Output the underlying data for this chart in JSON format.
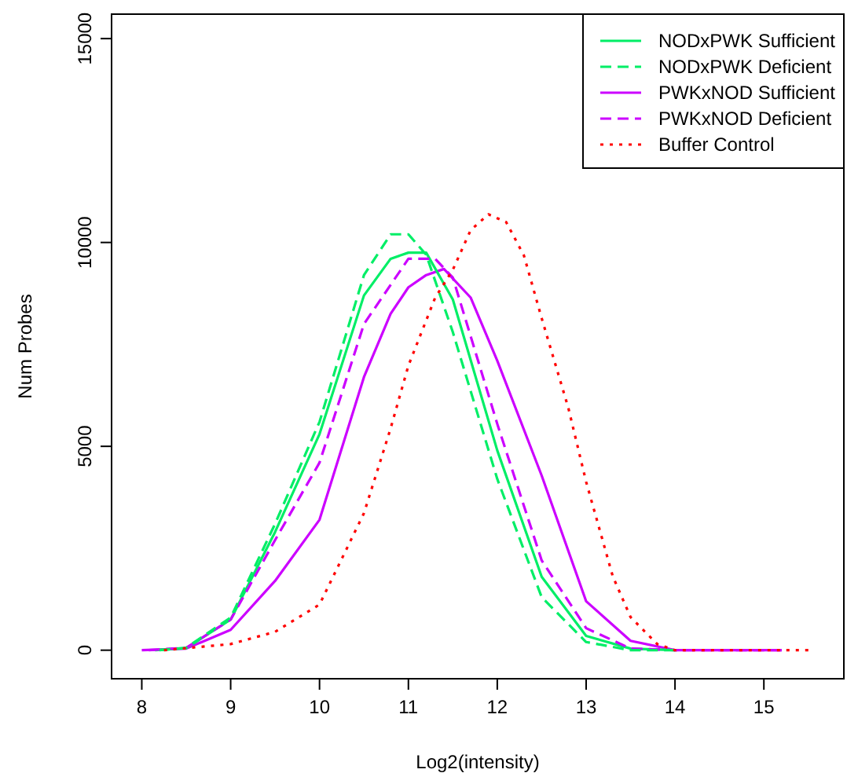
{
  "chart_data": {
    "type": "line",
    "xlabel": "Log2(intensity)",
    "ylabel": "Num Probes",
    "xlim": [
      7.66,
      15.9
    ],
    "ylim": [
      -700,
      15600
    ],
    "xticks": [
      8,
      9,
      10,
      11,
      12,
      13,
      14,
      15
    ],
    "yticks": [
      0,
      5000,
      10000,
      15000
    ],
    "grid": false,
    "legend": "top right",
    "marker": "none",
    "series": [
      {
        "name": "NODxPWK Sufficient",
        "color": "#00ee66",
        "line_style": "solid",
        "x": [
          8.15,
          8.5,
          9,
          9.5,
          10,
          10.5,
          10.8,
          11,
          11.2,
          11.5,
          12,
          12.5,
          13,
          13.5,
          14
        ],
        "values": [
          0,
          50,
          750,
          2900,
          5300,
          8700,
          9600,
          9750,
          9750,
          8600,
          4900,
          1800,
          350,
          40,
          0
        ]
      },
      {
        "name": "NODxPWK Deficient",
        "color": "#00ee66",
        "line_style": "dashed",
        "x": [
          8.2,
          8.5,
          9,
          9.5,
          10,
          10.5,
          10.8,
          11,
          11.2,
          11.5,
          12,
          12.5,
          13,
          13.5,
          14
        ],
        "values": [
          0,
          60,
          800,
          3100,
          5600,
          9200,
          10200,
          10200,
          9700,
          7800,
          4200,
          1300,
          200,
          0,
          0
        ]
      },
      {
        "name": "PWKxNOD Sufficient",
        "color": "#cc00ff",
        "line_style": "solid",
        "x": [
          8,
          8.5,
          9,
          9.5,
          10,
          10.5,
          10.8,
          11,
          11.2,
          11.4,
          11.7,
          12,
          12.5,
          13,
          13.5,
          14,
          15.2
        ],
        "values": [
          0,
          40,
          500,
          1700,
          3200,
          6700,
          8250,
          8900,
          9200,
          9350,
          8650,
          7100,
          4280,
          1200,
          230,
          0,
          0
        ]
      },
      {
        "name": "PWKxNOD Deficient",
        "color": "#cc00ff",
        "line_style": "dashed",
        "x": [
          8.08,
          8.5,
          9,
          9.5,
          10,
          10.5,
          11,
          11.3,
          11.5,
          12,
          12.5,
          13,
          13.5,
          14,
          15.2
        ],
        "values": [
          0,
          60,
          750,
          2700,
          4600,
          8000,
          9600,
          9600,
          9140,
          5550,
          2200,
          540,
          40,
          0,
          0
        ]
      },
      {
        "name": "Buffer Control",
        "color": "#ff0000",
        "line_style": "dotted",
        "x": [
          8.25,
          9,
          9.5,
          10,
          10.5,
          10.8,
          11,
          11.3,
          11.5,
          11.7,
          11.9,
          12.1,
          12.3,
          12.5,
          12.8,
          13,
          13.3,
          13.5,
          13.8,
          14,
          15.5
        ],
        "values": [
          0,
          150,
          450,
          1120,
          3360,
          5440,
          6980,
          8640,
          9330,
          10300,
          10690,
          10500,
          9680,
          8140,
          5940,
          4130,
          1810,
          810,
          150,
          0,
          0
        ]
      }
    ]
  }
}
